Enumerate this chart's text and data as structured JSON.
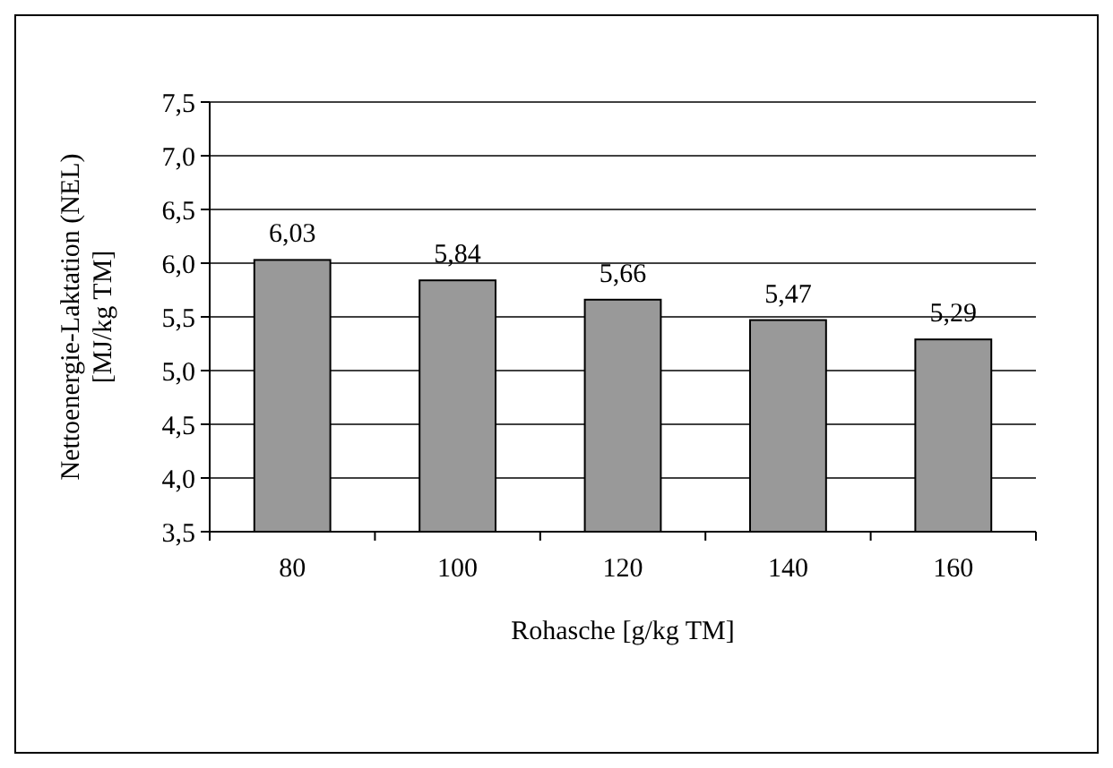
{
  "chart_data": {
    "type": "bar",
    "xlabel": "Rohasche [g/kg TM]",
    "ylabel": "Nettoenergie-Laktation (NEL)\n[MJ/kg TM]",
    "categories": [
      "80",
      "100",
      "120",
      "140",
      "160"
    ],
    "values": [
      6.03,
      5.84,
      5.66,
      5.47,
      5.29
    ],
    "value_labels": [
      "6,03",
      "5,84",
      "5,66",
      "5,47",
      "5,29"
    ],
    "color": "#999999",
    "ylim": [
      3.5,
      7.5
    ],
    "yticks": [
      {
        "value": 3.5,
        "label": "3,5"
      },
      {
        "value": 4,
        "label": "4,0"
      },
      {
        "value": 4.5,
        "label": "4,5"
      },
      {
        "value": 5,
        "label": "5,0"
      },
      {
        "value": 5.5,
        "label": "5,5"
      },
      {
        "value": 6,
        "label": "6,0"
      },
      {
        "value": 6.5,
        "label": "6,5"
      },
      {
        "value": 7,
        "label": "7,0"
      },
      {
        "value": 7.5,
        "label": "7,5"
      }
    ],
    "grid": "y"
  }
}
